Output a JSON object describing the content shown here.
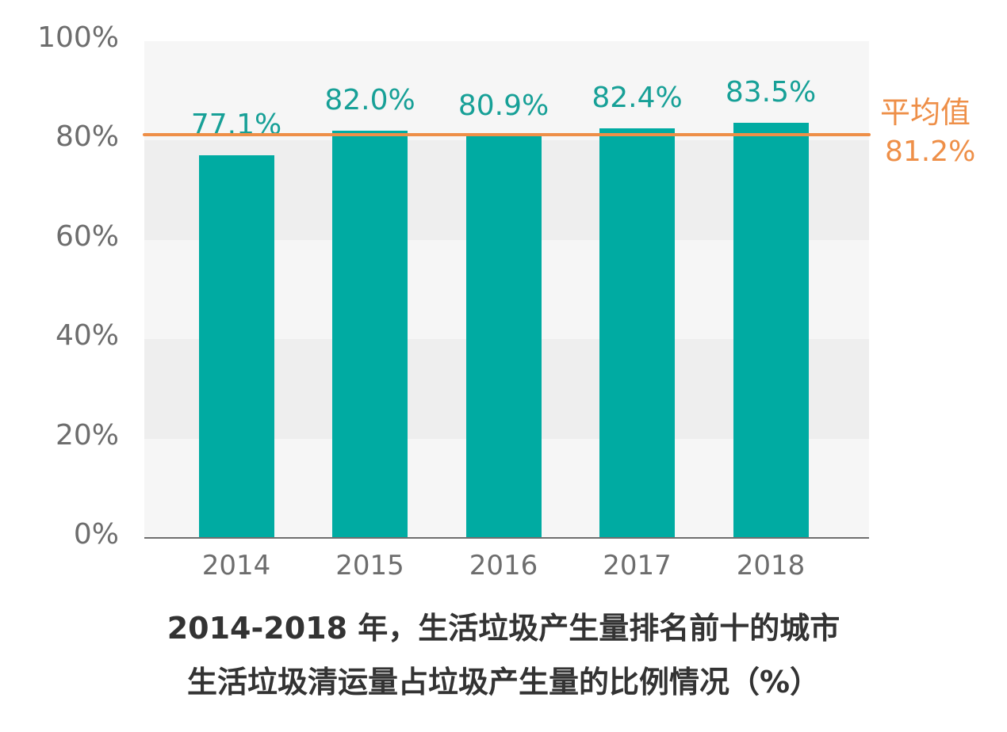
{
  "chart_data": {
    "type": "bar",
    "title": "2014-2018 年，生活垃圾产生量排名前十的城市生活垃圾清运量占垃圾产生量的比例情况（%）",
    "title_lines": [
      "2014-2018 年，生活垃圾产生量排名前十的城市",
      "生活垃圾清运量占垃圾产生量的比例情况（%）"
    ],
    "categories": [
      "2014",
      "2015",
      "2016",
      "2017",
      "2018"
    ],
    "values": [
      77.1,
      82.0,
      80.9,
      82.4,
      83.5
    ],
    "value_labels": [
      "77.1%",
      "82.0%",
      "80.9%",
      "82.4%",
      "83.5%"
    ],
    "xlabel": "",
    "ylabel": "",
    "ylim": [
      0,
      100
    ],
    "yticks": [
      0,
      20,
      40,
      60,
      80,
      100
    ],
    "ytick_labels": [
      "0%",
      "20%",
      "40%",
      "60%",
      "80%",
      "100%"
    ],
    "reference_line": {
      "label": "平均值",
      "value": 81.2,
      "value_label": "81.2%",
      "color": "#ee8f48"
    },
    "bar_color": "#00aba2",
    "label_color": "#17a097",
    "grid": "alternating horizontal bands",
    "band_colors": [
      "#f6f6f6",
      "#eeeeee"
    ],
    "legend": "none"
  }
}
